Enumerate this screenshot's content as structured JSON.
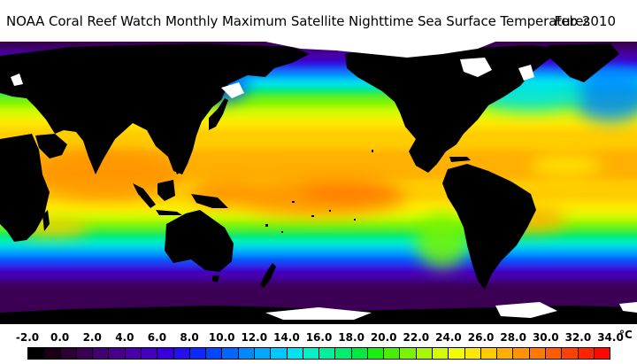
{
  "title": {
    "text": "NOAA Coral Reef Watch Monthly Maximum Satellite Nighttime Sea Surface Temperatures",
    "date": "Feb 2010"
  },
  "map": {
    "projection": "equirectangular",
    "land_color": "#000000",
    "ice_color": "#ffffff",
    "variable": "sea surface temperature"
  },
  "legend": {
    "unit": "°C",
    "tick_labels": [
      "-2.0",
      "0.0",
      "2.0",
      "4.0",
      "6.0",
      "8.0",
      "10.0",
      "12.0",
      "14.0",
      "16.0",
      "18.0",
      "20.0",
      "22.0",
      "24.0",
      "26.0",
      "28.0",
      "30.0",
      "32.0",
      "34.0"
    ],
    "bins": [
      {
        "from": -2,
        "to": -1,
        "color": "#000000"
      },
      {
        "from": -1,
        "to": 0,
        "color": "#1a0014"
      },
      {
        "from": 0,
        "to": 1,
        "color": "#2c0034"
      },
      {
        "from": 1,
        "to": 2,
        "color": "#3a0052"
      },
      {
        "from": 2,
        "to": 3,
        "color": "#420070"
      },
      {
        "from": 3,
        "to": 4,
        "color": "#48008c"
      },
      {
        "from": 4,
        "to": 5,
        "color": "#4a00a8"
      },
      {
        "from": 5,
        "to": 6,
        "color": "#4400c0"
      },
      {
        "from": 6,
        "to": 7,
        "color": "#3800d8"
      },
      {
        "from": 7,
        "to": 8,
        "color": "#2410ee"
      },
      {
        "from": 8,
        "to": 9,
        "color": "#0a28ff"
      },
      {
        "from": 9,
        "to": 10,
        "color": "#0048ff"
      },
      {
        "from": 10,
        "to": 11,
        "color": "#0068ff"
      },
      {
        "from": 11,
        "to": 12,
        "color": "#0088ff"
      },
      {
        "from": 12,
        "to": 13,
        "color": "#00a8ff"
      },
      {
        "from": 13,
        "to": 14,
        "color": "#00c8ff"
      },
      {
        "from": 14,
        "to": 15,
        "color": "#00e4f0"
      },
      {
        "from": 15,
        "to": 16,
        "color": "#00f0c8"
      },
      {
        "from": 16,
        "to": 17,
        "color": "#00f0a0"
      },
      {
        "from": 17,
        "to": 18,
        "color": "#00ee70"
      },
      {
        "from": 18,
        "to": 19,
        "color": "#00ea40"
      },
      {
        "from": 19,
        "to": 20,
        "color": "#18ee10"
      },
      {
        "from": 20,
        "to": 21,
        "color": "#48f000"
      },
      {
        "from": 21,
        "to": 22,
        "color": "#78f400"
      },
      {
        "from": 22,
        "to": 23,
        "color": "#a8f800"
      },
      {
        "from": 23,
        "to": 24,
        "color": "#d4fc00"
      },
      {
        "from": 24,
        "to": 25,
        "color": "#f4fc00"
      },
      {
        "from": 25,
        "to": 26,
        "color": "#ffe800"
      },
      {
        "from": 26,
        "to": 27,
        "color": "#ffcc00"
      },
      {
        "from": 27,
        "to": 28,
        "color": "#ffb000"
      },
      {
        "from": 28,
        "to": 29,
        "color": "#ff9400"
      },
      {
        "from": 29,
        "to": 30,
        "color": "#ff7800"
      },
      {
        "from": 30,
        "to": 31,
        "color": "#ff5c00"
      },
      {
        "from": 31,
        "to": 32,
        "color": "#ff4000"
      },
      {
        "from": 32,
        "to": 33,
        "color": "#ff2400"
      },
      {
        "from": 33,
        "to": 34,
        "color": "#ff0800"
      }
    ]
  }
}
